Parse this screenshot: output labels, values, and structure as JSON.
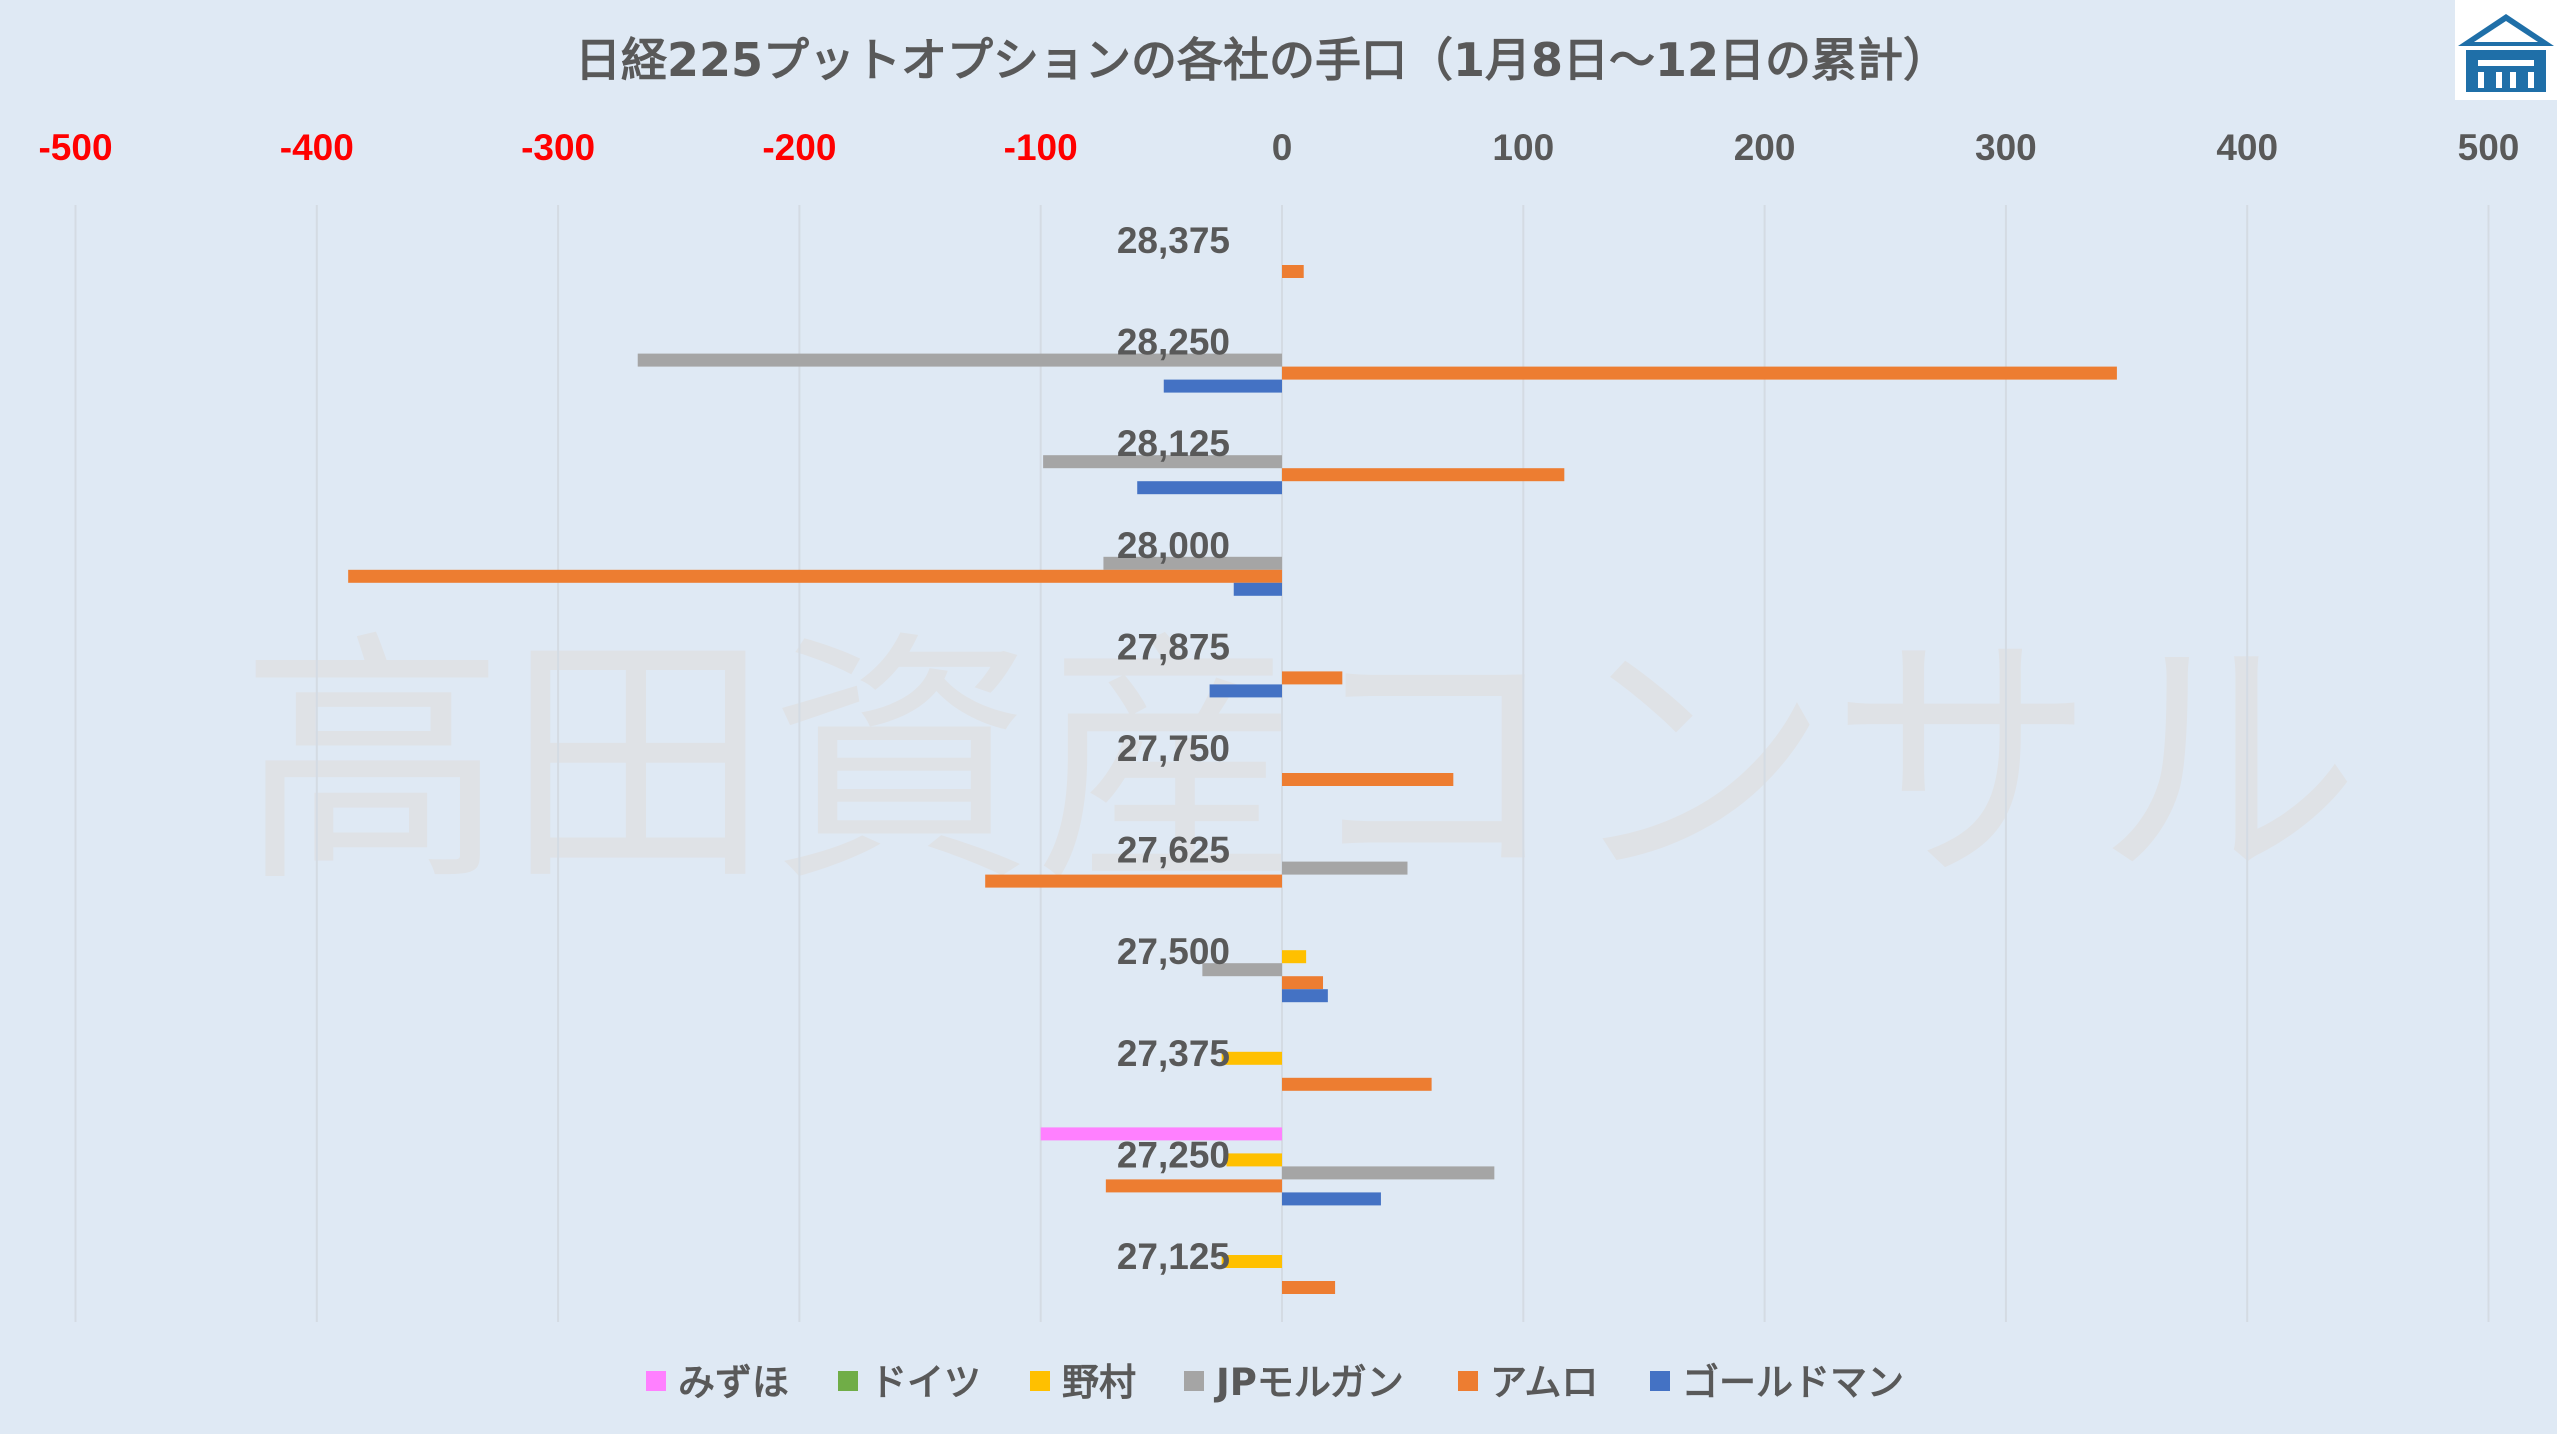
{
  "chart_data": {
    "type": "bar",
    "orientation": "horizontal",
    "title": "日経225プットオプションの各社の手口（1月8日～12日の累計）",
    "watermark": "高田資産コンサル",
    "xlim": [
      -500,
      500
    ],
    "x_ticks": [
      "-500",
      "-400",
      "-300",
      "-200",
      "-100",
      "0",
      "100",
      "200",
      "300",
      "400",
      "500"
    ],
    "negative_tick_color": "#ff0000",
    "positive_tick_color": "#595959",
    "grid": true,
    "legend_position": "bottom",
    "categories": [
      "28,375",
      "28,250",
      "28,125",
      "28,000",
      "27,875",
      "27,750",
      "27,625",
      "27,500",
      "27,375",
      "27,250",
      "27,125"
    ],
    "series": [
      {
        "name": "みずほ",
        "color": "#ff80ff",
        "values": [
          0,
          0,
          0,
          0,
          0,
          0,
          0,
          0,
          0,
          -100,
          0
        ]
      },
      {
        "name": "ドイツ",
        "color": "#70ad47",
        "values": [
          0,
          0,
          0,
          0,
          0,
          0,
          0,
          0,
          0,
          0,
          0
        ]
      },
      {
        "name": "野村",
        "color": "#ffc000",
        "values": [
          0,
          0,
          0,
          0,
          0,
          0,
          0,
          10,
          -25,
          -23,
          -25
        ]
      },
      {
        "name": "JPモルガン",
        "color": "#a5a5a5",
        "values": [
          0,
          -267,
          -99,
          -74,
          0,
          0,
          52,
          -33,
          0,
          88,
          0
        ]
      },
      {
        "name": "アムロ",
        "color": "#ed7d31",
        "values": [
          9,
          346,
          117,
          -387,
          25,
          71,
          -123,
          17,
          62,
          -73,
          22
        ]
      },
      {
        "name": "ゴールドマン",
        "color": "#4472c4",
        "values": [
          0,
          -49,
          -60,
          -20,
          -30,
          0,
          0,
          19,
          0,
          41,
          0
        ]
      }
    ]
  }
}
